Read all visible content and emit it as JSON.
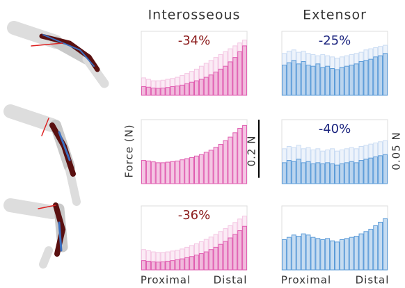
{
  "column_titles": [
    "Interosseous",
    "Extensor"
  ],
  "ylabel": "Force (N)",
  "x_labels": [
    "Proximal",
    "Distal"
  ],
  "scale_bar": {
    "label": "0.2 N",
    "value": 0.2
  },
  "right_scale_label": "0.05 N",
  "chart_data": [
    {
      "type": "bar",
      "annotation": "-34%",
      "annotation_color": "#8b1a1a",
      "ylim": [
        0,
        0.22
      ],
      "series": [
        {
          "color": "#f4c6e3",
          "values": [
            0.06,
            0.055,
            0.05,
            0.05,
            0.052,
            0.055,
            0.058,
            0.062,
            0.068,
            0.075,
            0.082,
            0.09,
            0.1,
            0.11,
            0.12,
            0.13,
            0.14,
            0.15,
            0.16,
            0.17,
            0.18,
            0.19
          ]
        },
        {
          "color": "#e05cb0",
          "values": [
            0.03,
            0.028,
            0.025,
            0.024,
            0.025,
            0.027,
            0.03,
            0.032,
            0.035,
            0.04,
            0.045,
            0.05,
            0.055,
            0.062,
            0.07,
            0.08,
            0.09,
            0.1,
            0.115,
            0.13,
            0.15,
            0.17
          ]
        }
      ]
    },
    {
      "type": "bar",
      "annotation": "-25%",
      "annotation_color": "#1a237e",
      "ylim": [
        0,
        0.055
      ],
      "series": [
        {
          "color": "#cadcf3",
          "values": [
            0.036,
            0.038,
            0.039,
            0.037,
            0.038,
            0.036,
            0.035,
            0.034,
            0.035,
            0.034,
            0.033,
            0.032,
            0.033,
            0.034,
            0.035,
            0.036,
            0.037,
            0.039,
            0.04,
            0.041,
            0.042,
            0.043
          ]
        },
        {
          "color": "#5b9bd8",
          "values": [
            0.026,
            0.028,
            0.03,
            0.027,
            0.029,
            0.026,
            0.025,
            0.027,
            0.024,
            0.025,
            0.023,
            0.022,
            0.024,
            0.025,
            0.026,
            0.027,
            0.029,
            0.03,
            0.031,
            0.033,
            0.034,
            0.036
          ]
        }
      ]
    },
    {
      "type": "bar",
      "ylim": [
        0,
        0.22
      ],
      "series": [
        {
          "color": "#e05cb0",
          "values": [
            0.08,
            0.078,
            0.075,
            0.072,
            0.072,
            0.074,
            0.076,
            0.078,
            0.082,
            0.086,
            0.09,
            0.095,
            0.1,
            0.108,
            0.115,
            0.125,
            0.135,
            0.148,
            0.16,
            0.175,
            0.19,
            0.2
          ]
        }
      ]
    },
    {
      "type": "bar",
      "annotation": "-40%",
      "annotation_color": "#1a237e",
      "ylim": [
        0,
        0.055
      ],
      "series": [
        {
          "color": "#cadcf3",
          "values": [
            0.03,
            0.032,
            0.031,
            0.033,
            0.03,
            0.031,
            0.029,
            0.03,
            0.028,
            0.029,
            0.03,
            0.028,
            0.029,
            0.03,
            0.031,
            0.03,
            0.032,
            0.033,
            0.034,
            0.035,
            0.036,
            0.037
          ]
        },
        {
          "color": "#5b9bd8",
          "values": [
            0.018,
            0.02,
            0.019,
            0.021,
            0.018,
            0.019,
            0.017,
            0.018,
            0.017,
            0.018,
            0.017,
            0.016,
            0.017,
            0.018,
            0.019,
            0.018,
            0.02,
            0.021,
            0.022,
            0.023,
            0.024,
            0.025
          ]
        }
      ]
    },
    {
      "type": "bar",
      "annotation": "-36%",
      "annotation_color": "#8b1a1a",
      "ylim": [
        0,
        0.22
      ],
      "series": [
        {
          "color": "#f4c6e3",
          "values": [
            0.07,
            0.066,
            0.062,
            0.06,
            0.06,
            0.062,
            0.065,
            0.068,
            0.072,
            0.078,
            0.084,
            0.09,
            0.097,
            0.105,
            0.113,
            0.122,
            0.132,
            0.142,
            0.152,
            0.163,
            0.175,
            0.185
          ]
        },
        {
          "color": "#e05cb0",
          "values": [
            0.032,
            0.03,
            0.028,
            0.027,
            0.028,
            0.03,
            0.032,
            0.035,
            0.038,
            0.042,
            0.046,
            0.051,
            0.056,
            0.062,
            0.07,
            0.078,
            0.088,
            0.098,
            0.11,
            0.122,
            0.135,
            0.15
          ]
        }
      ]
    },
    {
      "type": "bar",
      "ylim": [
        0,
        0.055
      ],
      "series": [
        {
          "color": "#5b9bd8",
          "values": [
            0.026,
            0.028,
            0.03,
            0.029,
            0.031,
            0.03,
            0.028,
            0.027,
            0.026,
            0.027,
            0.025,
            0.024,
            0.026,
            0.027,
            0.028,
            0.029,
            0.031,
            0.033,
            0.035,
            0.038,
            0.041,
            0.044
          ]
        }
      ]
    }
  ]
}
